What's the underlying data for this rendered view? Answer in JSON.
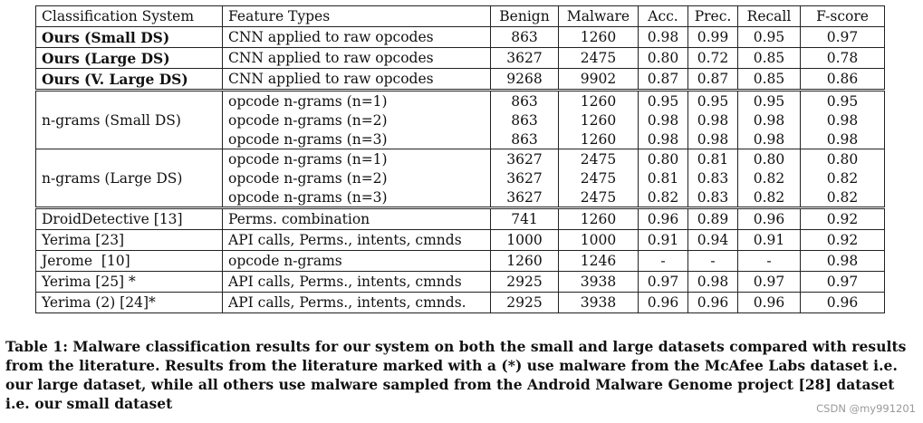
{
  "table": {
    "headers": [
      "Classification System",
      "Feature Types",
      "Benign",
      "Malware",
      "Acc.",
      "Prec.",
      "Recall",
      "F-score"
    ],
    "ours": [
      {
        "system": "Ours (Small DS)",
        "features": "CNN applied to raw opcodes",
        "benign": "863",
        "malware": "1260",
        "acc": "0.98",
        "prec": "0.99",
        "recall": "0.95",
        "fscore": "0.97"
      },
      {
        "system": "Ours (Large DS)",
        "features": "CNN applied to raw opcodes",
        "benign": "3627",
        "malware": "2475",
        "acc": "0.80",
        "prec": "0.72",
        "recall": "0.85",
        "fscore": "0.78"
      },
      {
        "system": "Ours (V. Large DS)",
        "features": "CNN applied to raw opcodes",
        "benign": "9268",
        "malware": "9902",
        "acc": "0.87",
        "prec": "0.87",
        "recall": "0.85",
        "fscore": "0.86"
      }
    ],
    "ngram_small": {
      "system": "n-grams (Small DS)",
      "rows": [
        {
          "features": "opcode n-grams (n=1)",
          "benign": "863",
          "malware": "1260",
          "acc": "0.95",
          "prec": "0.95",
          "recall": "0.95",
          "fscore": "0.95"
        },
        {
          "features": "opcode n-grams (n=2)",
          "benign": "863",
          "malware": "1260",
          "acc": "0.98",
          "prec": "0.98",
          "recall": "0.98",
          "fscore": "0.98"
        },
        {
          "features": "opcode n-grams (n=3)",
          "benign": "863",
          "malware": "1260",
          "acc": "0.98",
          "prec": "0.98",
          "recall": "0.98",
          "fscore": "0.98"
        }
      ]
    },
    "ngram_large": {
      "system": "n-grams (Large DS)",
      "rows": [
        {
          "features": "opcode n-grams (n=1)",
          "benign": "3627",
          "malware": "2475",
          "acc": "0.80",
          "prec": "0.81",
          "recall": "0.80",
          "fscore": "0.80"
        },
        {
          "features": "opcode n-grams (n=2)",
          "benign": "3627",
          "malware": "2475",
          "acc": "0.81",
          "prec": "0.83",
          "recall": "0.82",
          "fscore": "0.82"
        },
        {
          "features": "opcode n-grams (n=3)",
          "benign": "3627",
          "malware": "2475",
          "acc": "0.82",
          "prec": "0.83",
          "recall": "0.82",
          "fscore": "0.82"
        }
      ]
    },
    "literature": [
      {
        "system": "DroidDetective [13]",
        "features": "Perms. combination",
        "benign": "741",
        "malware": "1260",
        "acc": "0.96",
        "prec": "0.89",
        "recall": "0.96",
        "fscore": "0.92"
      },
      {
        "system": "Yerima [23]",
        "features": "API calls, Perms., intents, cmnds",
        "benign": "1000",
        "malware": "1000",
        "acc": "0.91",
        "prec": "0.94",
        "recall": "0.91",
        "fscore": "0.92"
      },
      {
        "system": "Jerome  [10]",
        "features": "opcode n-grams",
        "benign": "1260",
        "malware": "1246",
        "acc": "-",
        "prec": "-",
        "recall": "-",
        "fscore": "0.98"
      },
      {
        "system": "Yerima [25] *",
        "features": "API calls, Perms., intents, cmnds",
        "benign": "2925",
        "malware": "3938",
        "acc": "0.97",
        "prec": "0.98",
        "recall": "0.97",
        "fscore": "0.97"
      },
      {
        "system": "Yerima (2) [24]*",
        "features": "API calls, Perms., intents, cmnds.",
        "benign": "2925",
        "malware": "3938",
        "acc": "0.96",
        "prec": "0.96",
        "recall": "0.96",
        "fscore": "0.96"
      }
    ]
  },
  "caption": "Table 1: Malware classification results for our system on both the small and large datasets compared with results from the literature. Results from the literature marked with a (*) use malware from the McAfee Labs dataset i.e. our large dataset, while all others use malware sampled from the Android Malware Genome project [28] dataset i.e. our small dataset",
  "watermark": "CSDN @my991201"
}
